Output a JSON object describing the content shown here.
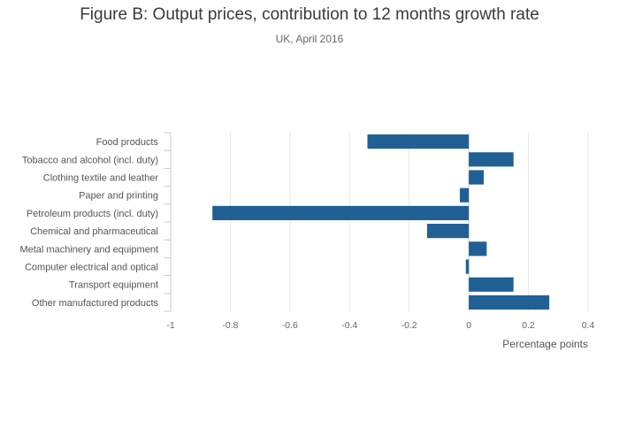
{
  "chart_data": {
    "type": "bar",
    "orientation": "horizontal",
    "title": "Figure B: Output prices, contribution to 12 months growth rate",
    "subtitle": "UK, April 2016",
    "xlabel": "Percentage points",
    "ylabel": "",
    "xlim": [
      -1,
      0.4
    ],
    "xticks": [
      "-1",
      "-0.8",
      "-0.6",
      "-0.4",
      "-0.2",
      "0",
      "0.2",
      "0.4"
    ],
    "xtick_values": [
      -1,
      -0.8,
      -0.6,
      -0.4,
      -0.2,
      0,
      0.2,
      0.4
    ],
    "grid": true,
    "bar_color": "#206095",
    "categories": [
      "Food products",
      "Tobacco and alcohol (incl. duty)",
      "Clothing textile and leather",
      "Paper and printing",
      "Petroleum products (incl. duty)",
      "Chemical and pharmaceutical",
      "Metal machinery and equipment",
      "Computer electrical and optical",
      "Transport equipment",
      "Other manufactured products"
    ],
    "values": [
      -0.34,
      0.15,
      0.05,
      -0.03,
      -0.86,
      -0.14,
      0.06,
      -0.01,
      0.15,
      0.27
    ]
  }
}
